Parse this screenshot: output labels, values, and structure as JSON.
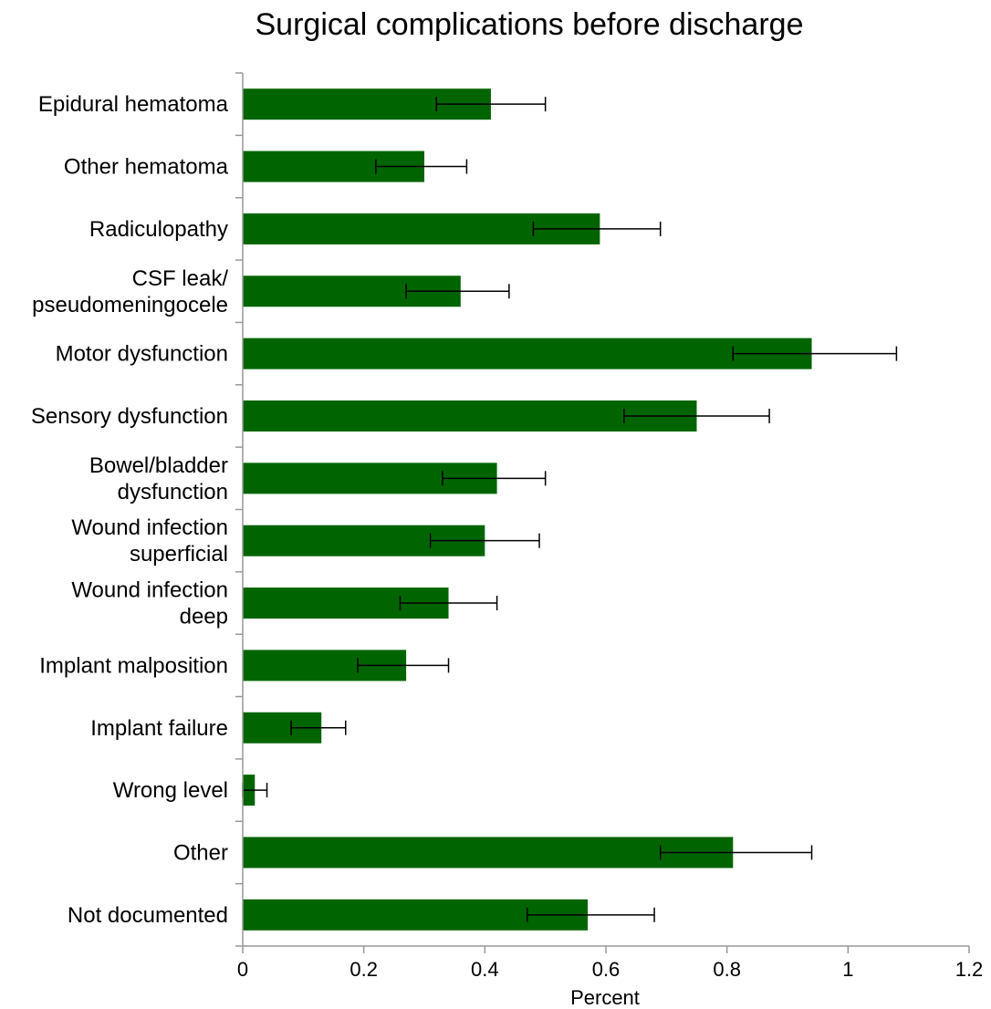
{
  "chart_data": {
    "type": "bar",
    "orientation": "horizontal",
    "title": "Surgical complications before discharge",
    "xlabel": "Percent",
    "ylabel": "",
    "xlim": [
      0,
      1.2
    ],
    "xticks": [
      "0",
      "0.2",
      "0.4",
      "0.6",
      "0.8",
      "1",
      "1.2"
    ],
    "grid": false,
    "categories": [
      [
        "Epidural hematoma"
      ],
      [
        "Other hematoma"
      ],
      [
        "Radiculopathy"
      ],
      [
        "CSF leak/",
        "pseudomeningocele"
      ],
      [
        "Motor dysfunction"
      ],
      [
        "Sensory dysfunction"
      ],
      [
        "Bowel/bladder",
        "dysfunction"
      ],
      [
        "Wound infection",
        "superficial"
      ],
      [
        "Wound infection",
        "deep"
      ],
      [
        "Implant malposition"
      ],
      [
        "Implant failure"
      ],
      [
        "Wrong level"
      ],
      [
        "Other"
      ],
      [
        "Not documented"
      ]
    ],
    "values": [
      0.41,
      0.3,
      0.59,
      0.36,
      0.94,
      0.75,
      0.42,
      0.4,
      0.34,
      0.27,
      0.13,
      0.02,
      0.81,
      0.57
    ],
    "error_low": [
      0.32,
      0.22,
      0.48,
      0.27,
      0.81,
      0.63,
      0.33,
      0.31,
      0.26,
      0.19,
      0.08,
      0.0,
      0.69,
      0.47
    ],
    "error_high": [
      0.5,
      0.37,
      0.69,
      0.44,
      1.08,
      0.87,
      0.5,
      0.49,
      0.42,
      0.34,
      0.17,
      0.04,
      0.94,
      0.68
    ],
    "bar_color": "#006400",
    "errorbar_color": "#000000"
  }
}
